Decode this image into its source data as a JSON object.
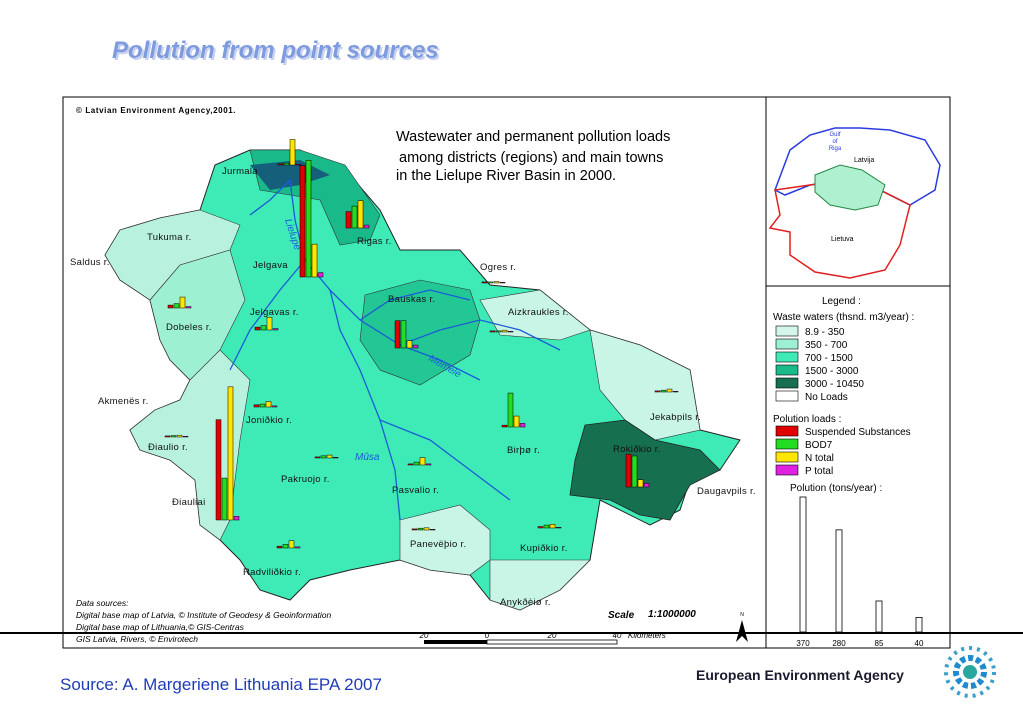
{
  "title": "Pollution from point sources",
  "map": {
    "copyright": "© Latvian Environment Agency,2001.",
    "heading": [
      "Wastewater and permanent pollution loads",
      "among districts (regions) and main towns",
      "in the Lielupe River Basin in 2000."
    ],
    "load_series": [
      {
        "name": "Suspended Substances",
        "color": "#e00000"
      },
      {
        "name": "BOD7",
        "color": "#22dd22"
      },
      {
        "name": "N total",
        "color": "#ffe600"
      },
      {
        "name": "P total",
        "color": "#e020e0"
      }
    ],
    "districts": [
      {
        "label": "Jurmala",
        "loads": [
          3,
          5,
          70,
          2
        ]
      },
      {
        "label": "Tukuma r."
      },
      {
        "label": "Saldus r."
      },
      {
        "label": "Jelgava",
        "loads": [
          305,
          320,
          90,
          12
        ]
      },
      {
        "label": "Rigas r.",
        "loads": [
          45,
          60,
          75,
          8
        ]
      },
      {
        "label": "Ogres r.",
        "loads": [
          3,
          3,
          4,
          2
        ]
      },
      {
        "label": "Bauskas r.",
        "loads": [
          75,
          75,
          20,
          8
        ]
      },
      {
        "label": "Jelgavas r.",
        "loads": [
          8,
          12,
          35,
          4
        ]
      },
      {
        "label": "Dobeles r.",
        "loads": [
          8,
          12,
          30,
          4
        ]
      },
      {
        "label": "Aizkraukles r.",
        "loads": [
          3,
          3,
          5,
          2
        ]
      },
      {
        "label": "Akmenës r."
      },
      {
        "label": "Joniðkio r.",
        "loads": [
          6,
          8,
          15,
          3
        ]
      },
      {
        "label": "Jekabpils r.",
        "loads": [
          3,
          5,
          8,
          2
        ]
      },
      {
        "label": "Ðiaulio r.",
        "loads": [
          3,
          4,
          5,
          2
        ]
      },
      {
        "label": "Rokiðkio r.",
        "loads": [
          90,
          85,
          20,
          10
        ]
      },
      {
        "label": "Birþø r.",
        "loads": [
          5,
          93,
          30,
          10
        ]
      },
      {
        "label": "Pakruojo r.",
        "loads": [
          3,
          6,
          8,
          2
        ]
      },
      {
        "label": "Pasvalio r.",
        "loads": [
          3,
          8,
          20,
          3
        ]
      },
      {
        "label": "Ðiauliai",
        "loads": [
          275,
          115,
          365,
          10
        ]
      },
      {
        "label": "Daugavpils r."
      },
      {
        "label": "Panevëþio r.",
        "loads": [
          3,
          5,
          6,
          2
        ]
      },
      {
        "label": "Kupiðkio r.",
        "loads": [
          4,
          8,
          10,
          2
        ]
      },
      {
        "label": "Radviliðkio r.",
        "loads": [
          5,
          10,
          20,
          3
        ]
      },
      {
        "label": "Anykðèiø r."
      }
    ],
    "rivers": [
      "Lielupe",
      "Mûsa",
      "Mëmele"
    ],
    "inset": {
      "gulf": [
        "Gulf",
        "of",
        "Riga"
      ],
      "latvia": "Latvija",
      "lithuania": "Lietuva"
    },
    "legend": {
      "title": "Legend :",
      "waste_title": "Waste waters (thsnd. m3/year) :",
      "waste_classes": [
        {
          "label": "8.9 - 350",
          "color": "#d4f5ea"
        },
        {
          "label": "350 - 700",
          "color": "#9ef0d3"
        },
        {
          "label": "700 - 1500",
          "color": "#3eeab6"
        },
        {
          "label": "1500 - 3000",
          "color": "#19b98a"
        },
        {
          "label": "3000 - 10450",
          "color": "#16704f"
        },
        {
          "label": "No Loads",
          "color": "#ffffff"
        }
      ],
      "loads_title": "Polution  loads :",
      "scale_title": "Polution (tons/year) :",
      "scale_values": [
        370,
        280,
        85,
        40
      ]
    },
    "scale": {
      "label": "Scale",
      "ratio": "1:1000000",
      "ticks": [
        "20",
        "0",
        "20",
        "40"
      ],
      "unit": "Kilometers"
    },
    "north": "N",
    "sources": [
      "Data sources:",
      "Digital base map of Latvia,  © Institute of Geodesy & Geoinformation",
      "Digital base map of Lithuania,© GIS-Centras",
      "GIS Latvia, Rivers, © Envirotech"
    ]
  },
  "source": "Source: A. Margeriene Lithuania EPA 2007",
  "organization": "European Environment Agency"
}
